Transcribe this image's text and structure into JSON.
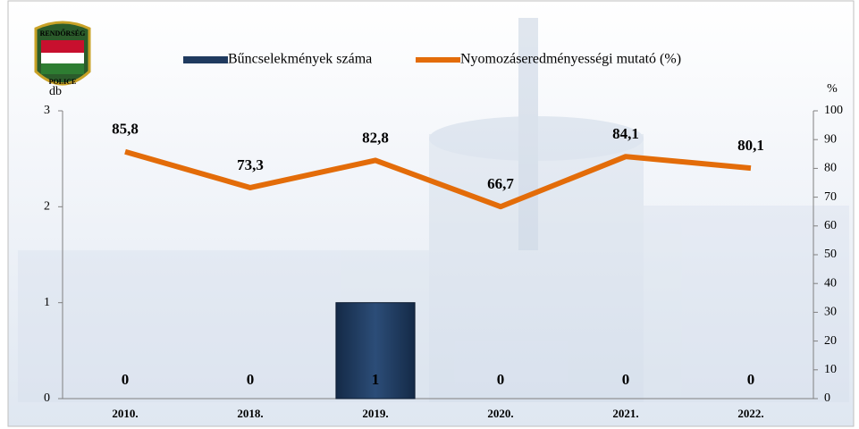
{
  "chart_data": {
    "type": "bar-line",
    "logo_texts": [
      "RENDŐRSÉG",
      "POLICE"
    ],
    "categories": [
      "2010.",
      "2018.",
      "2019.",
      "2020.",
      "2021.",
      "2022."
    ],
    "series": [
      {
        "name": "Bűncselekmények száma",
        "type": "bar",
        "color": "#1f3a5f",
        "values": [
          0,
          0,
          1,
          0,
          0,
          0
        ]
      },
      {
        "name": "Nyomozáseredményességi mutató (%)",
        "type": "line",
        "axis": "y2",
        "color": "#e36c09",
        "values": [
          85.8,
          73.3,
          82.8,
          66.7,
          84.1,
          80.1
        ],
        "value_labels": [
          "85,8",
          "73,3",
          "82,8",
          "66,7",
          "84,1",
          "80,1"
        ]
      }
    ],
    "ylabel": "db",
    "y2label": "%",
    "ylim": [
      0,
      3
    ],
    "yticks": [
      0,
      1,
      2,
      3
    ],
    "y2lim": [
      0,
      100
    ],
    "y2ticks": [
      0,
      10,
      20,
      30,
      40,
      50,
      60,
      70,
      80,
      90,
      100
    ],
    "legend": "top"
  }
}
